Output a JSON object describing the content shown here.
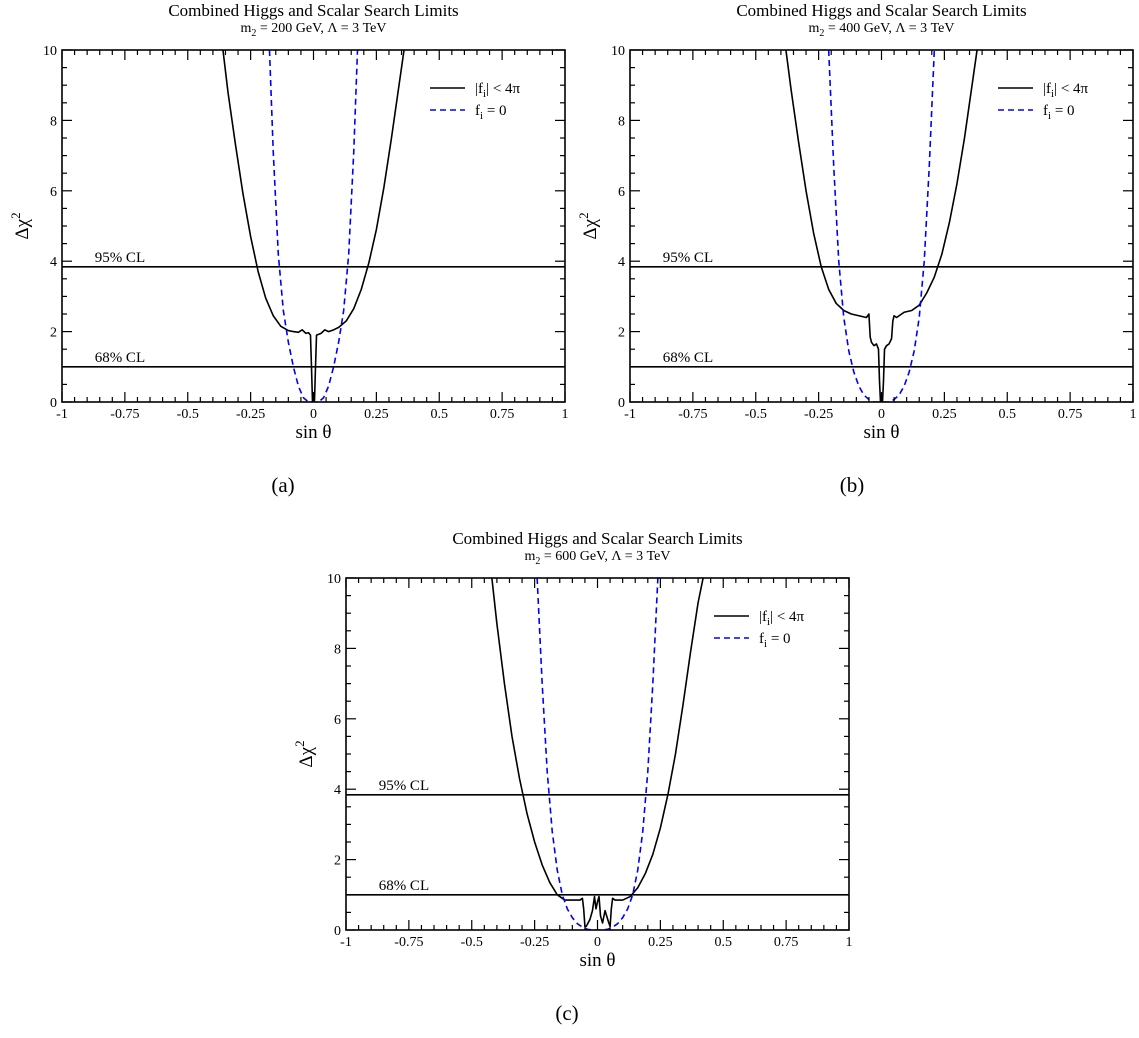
{
  "chart_data": [
    {
      "type": "line",
      "panel_label": "(a)",
      "title": "Combined Higgs and Scalar Search Limits",
      "subtitle": {
        "m_sym": "m",
        "m_sub": "2",
        "text": " = 200 GeV, Λ = 3 TeV"
      },
      "xlabel": "sin θ",
      "ylabel": {
        "base": "Δχ",
        "sup": "2"
      },
      "xlim": [
        -1,
        1
      ],
      "ylim": [
        0,
        10
      ],
      "xticks": [
        "-1",
        "-0.75",
        "-0.5",
        "-0.25",
        "0",
        "0.25",
        "0.5",
        "0.75",
        "1"
      ],
      "yticks": [
        "0",
        "2",
        "4",
        "6",
        "8",
        "10"
      ],
      "grid": false,
      "legend_position": "top-right",
      "reference_lines": [
        {
          "label": "95% CL",
          "y": 3.84
        },
        {
          "label": "68% CL",
          "y": 1.0
        }
      ],
      "series": [
        {
          "name": {
            "pre": "|f",
            "sub": "i",
            "post": "| < 4π"
          },
          "color": "#000000",
          "style": "solid",
          "x": [
            -0.36,
            -0.34,
            -0.31,
            -0.28,
            -0.25,
            -0.22,
            -0.19,
            -0.16,
            -0.13,
            -0.1,
            -0.08,
            -0.06,
            -0.045,
            -0.03,
            -0.02,
            -0.012,
            -0.008,
            -0.004,
            0.0,
            0.004,
            0.008,
            0.012,
            0.02,
            0.03,
            0.045,
            0.06,
            0.08,
            0.1,
            0.13,
            0.16,
            0.19,
            0.22,
            0.25,
            0.28,
            0.31,
            0.34,
            0.36
          ],
          "y": [
            10.0,
            8.8,
            7.3,
            5.9,
            4.7,
            3.7,
            2.95,
            2.45,
            2.15,
            2.03,
            2.0,
            1.98,
            2.05,
            1.95,
            1.97,
            1.9,
            1.0,
            0.0,
            0.0,
            0.05,
            1.0,
            1.9,
            1.92,
            1.95,
            2.05,
            2.0,
            2.05,
            2.12,
            2.3,
            2.65,
            3.2,
            3.95,
            4.9,
            6.1,
            7.5,
            9.0,
            10.0
          ]
        },
        {
          "name": {
            "pre": "f",
            "sub": "i",
            "post": " = 0"
          },
          "color": "#0000ff",
          "style": "dashed",
          "x": [
            -0.175,
            -0.16,
            -0.14,
            -0.12,
            -0.1,
            -0.08,
            -0.06,
            -0.04,
            -0.02,
            0.0,
            0.02,
            0.04,
            0.06,
            0.08,
            0.1,
            0.12,
            0.14,
            0.16,
            0.175
          ],
          "y": [
            10.0,
            7.1,
            4.2,
            2.6,
            1.7,
            1.0,
            0.45,
            0.12,
            0.0,
            0.0,
            0.0,
            0.12,
            0.45,
            1.0,
            1.7,
            2.6,
            4.2,
            7.1,
            10.0
          ]
        }
      ]
    },
    {
      "type": "line",
      "panel_label": "(b)",
      "title": "Combined Higgs and Scalar Search Limits",
      "subtitle": {
        "m_sym": "m",
        "m_sub": "2",
        "text": " = 400 GeV, Λ = 3 TeV"
      },
      "xlabel": "sin θ",
      "ylabel": {
        "base": "Δχ",
        "sup": "2"
      },
      "xlim": [
        -1,
        1
      ],
      "ylim": [
        0,
        10
      ],
      "xticks": [
        "-1",
        "-0.75",
        "-0.5",
        "-0.25",
        "0",
        "0.25",
        "0.5",
        "0.75",
        "1"
      ],
      "yticks": [
        "0",
        "2",
        "4",
        "6",
        "8",
        "10"
      ],
      "grid": false,
      "legend_position": "top-right",
      "reference_lines": [
        {
          "label": "95% CL",
          "y": 3.84
        },
        {
          "label": "68% CL",
          "y": 1.0
        }
      ],
      "series": [
        {
          "name": {
            "pre": "|f",
            "sub": "i",
            "post": "| < 4π"
          },
          "color": "#000000",
          "style": "solid",
          "x": [
            -0.38,
            -0.36,
            -0.33,
            -0.3,
            -0.27,
            -0.24,
            -0.21,
            -0.18,
            -0.15,
            -0.12,
            -0.09,
            -0.06,
            -0.05,
            -0.045,
            -0.04,
            -0.03,
            -0.02,
            -0.012,
            -0.008,
            -0.004,
            0.0,
            0.004,
            0.008,
            0.012,
            0.02,
            0.03,
            0.04,
            0.045,
            0.05,
            0.06,
            0.09,
            0.12,
            0.15,
            0.18,
            0.21,
            0.24,
            0.27,
            0.3,
            0.33,
            0.36,
            0.38
          ],
          "y": [
            10.0,
            8.9,
            7.4,
            6.0,
            4.8,
            3.85,
            3.2,
            2.8,
            2.6,
            2.5,
            2.45,
            2.4,
            2.5,
            1.85,
            1.7,
            1.6,
            1.65,
            1.5,
            0.6,
            0.0,
            0.0,
            0.0,
            0.6,
            1.5,
            1.6,
            1.65,
            1.8,
            2.3,
            2.45,
            2.4,
            2.55,
            2.6,
            2.75,
            3.1,
            3.55,
            4.2,
            5.1,
            6.2,
            7.5,
            9.0,
            10.0
          ]
        },
        {
          "name": {
            "pre": "f",
            "sub": "i",
            "post": " = 0"
          },
          "color": "#0000ff",
          "style": "dashed",
          "x": [
            -0.21,
            -0.19,
            -0.17,
            -0.15,
            -0.13,
            -0.11,
            -0.09,
            -0.07,
            -0.05,
            -0.03,
            -0.01,
            0.0,
            0.01,
            0.03,
            0.05,
            0.07,
            0.09,
            0.11,
            0.13,
            0.15,
            0.17,
            0.19,
            0.21
          ],
          "y": [
            10.0,
            6.7,
            4.0,
            2.4,
            1.45,
            0.85,
            0.45,
            0.2,
            0.07,
            0.0,
            0.0,
            0.0,
            0.0,
            0.0,
            0.07,
            0.2,
            0.45,
            0.85,
            1.45,
            2.4,
            4.0,
            6.7,
            10.0
          ]
        }
      ]
    },
    {
      "type": "line",
      "panel_label": "(c)",
      "title": "Combined Higgs and Scalar Search Limits",
      "subtitle": {
        "m_sym": "m",
        "m_sub": "2",
        "text": " = 600 GeV, Λ = 3 TeV"
      },
      "xlabel": "sin θ",
      "ylabel": {
        "base": "Δχ",
        "sup": "2"
      },
      "xlim": [
        -1,
        1
      ],
      "ylim": [
        0,
        10
      ],
      "xticks": [
        "-1",
        "-0.75",
        "-0.5",
        "-0.25",
        "0",
        "0.25",
        "0.5",
        "0.75",
        "1"
      ],
      "yticks": [
        "0",
        "2",
        "4",
        "6",
        "8",
        "10"
      ],
      "grid": false,
      "legend_position": "top-right",
      "reference_lines": [
        {
          "label": "95% CL",
          "y": 3.84
        },
        {
          "label": "68% CL",
          "y": 1.0
        }
      ],
      "series": [
        {
          "name": {
            "pre": "|f",
            "sub": "i",
            "post": "| < 4π"
          },
          "color": "#000000",
          "style": "solid",
          "x": [
            -0.42,
            -0.4,
            -0.37,
            -0.34,
            -0.31,
            -0.28,
            -0.25,
            -0.22,
            -0.19,
            -0.16,
            -0.13,
            -0.1,
            -0.07,
            -0.06,
            -0.055,
            -0.05,
            -0.045,
            -0.03,
            -0.02,
            -0.012,
            -0.006,
            0.0,
            0.006,
            0.012,
            0.02,
            0.03,
            0.045,
            0.05,
            0.055,
            0.06,
            0.07,
            0.1,
            0.13,
            0.16,
            0.19,
            0.22,
            0.25,
            0.28,
            0.31,
            0.34,
            0.37,
            0.4,
            0.42
          ],
          "y": [
            10.0,
            8.7,
            7.0,
            5.5,
            4.3,
            3.3,
            2.5,
            1.85,
            1.35,
            1.0,
            0.85,
            0.85,
            0.85,
            0.9,
            0.6,
            0.1,
            0.1,
            0.3,
            0.55,
            0.95,
            0.6,
            0.8,
            0.95,
            0.4,
            0.2,
            0.55,
            0.2,
            0.1,
            0.6,
            0.9,
            0.85,
            0.85,
            0.95,
            1.2,
            1.6,
            2.15,
            2.9,
            3.85,
            5.0,
            6.4,
            7.9,
            9.3,
            10.0
          ]
        },
        {
          "name": {
            "pre": "f",
            "sub": "i",
            "post": " = 0"
          },
          "color": "#0000ff",
          "style": "dashed",
          "x": [
            -0.24,
            -0.22,
            -0.2,
            -0.18,
            -0.16,
            -0.14,
            -0.12,
            -0.1,
            -0.08,
            -0.06,
            -0.04,
            -0.02,
            0.0,
            0.02,
            0.04,
            0.06,
            0.08,
            0.1,
            0.12,
            0.14,
            0.16,
            0.18,
            0.2,
            0.22,
            0.24
          ],
          "y": [
            10.0,
            7.0,
            4.5,
            2.8,
            1.7,
            1.0,
            0.6,
            0.35,
            0.18,
            0.08,
            0.02,
            0.0,
            0.0,
            0.0,
            0.02,
            0.08,
            0.18,
            0.35,
            0.6,
            1.0,
            1.7,
            2.8,
            4.5,
            7.0,
            10.0
          ]
        }
      ]
    }
  ]
}
